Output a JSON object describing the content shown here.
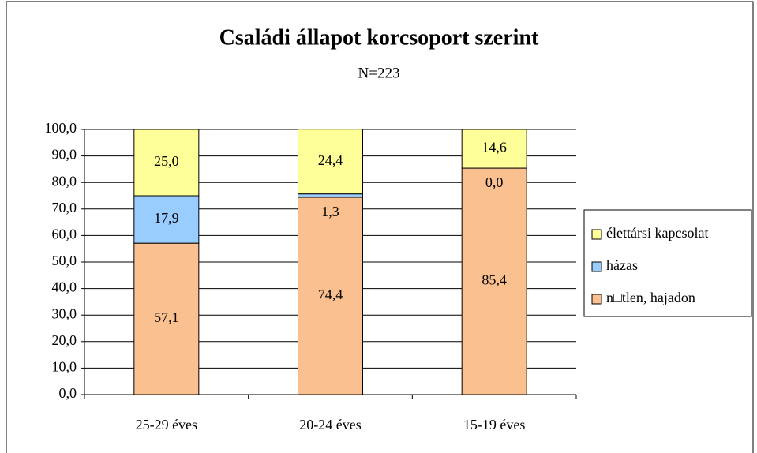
{
  "chart_data": {
    "type": "stacked_bar",
    "title": "Családi állapot korcsoport szerint",
    "subtitle": "N=223",
    "categories": [
      "25-29 éves",
      "20-24 éves",
      "15-19 éves"
    ],
    "series": [
      {
        "name": "n□tlen, hajadon",
        "color": "#fac090",
        "values": [
          57.1,
          74.4,
          85.4
        ],
        "value_labels": [
          "57,1",
          "74,4",
          "85,4"
        ]
      },
      {
        "name": "házas",
        "color": "#99ccff",
        "values": [
          17.9,
          1.3,
          0.0
        ],
        "value_labels": [
          "17,9",
          "1,3",
          "0,0"
        ]
      },
      {
        "name": "élettársi kapcsolat",
        "color": "#ffff99",
        "values": [
          25.0,
          24.4,
          14.6
        ],
        "value_labels": [
          "25,0",
          "24,4",
          "14,6"
        ]
      }
    ],
    "ylim": [
      0,
      100
    ],
    "yticks": [
      {
        "value": 0,
        "label": "0,0"
      },
      {
        "value": 10,
        "label": "10,0"
      },
      {
        "value": 20,
        "label": "20,0"
      },
      {
        "value": 30,
        "label": "30,0"
      },
      {
        "value": 40,
        "label": "40,0"
      },
      {
        "value": 50,
        "label": "50,0"
      },
      {
        "value": 60,
        "label": "60,0"
      },
      {
        "value": 70,
        "label": "70,0"
      },
      {
        "value": 80,
        "label": "80,0"
      },
      {
        "value": 90,
        "label": "90,0"
      },
      {
        "value": 100,
        "label": "100,0"
      }
    ],
    "grid": true,
    "legend": "right"
  }
}
